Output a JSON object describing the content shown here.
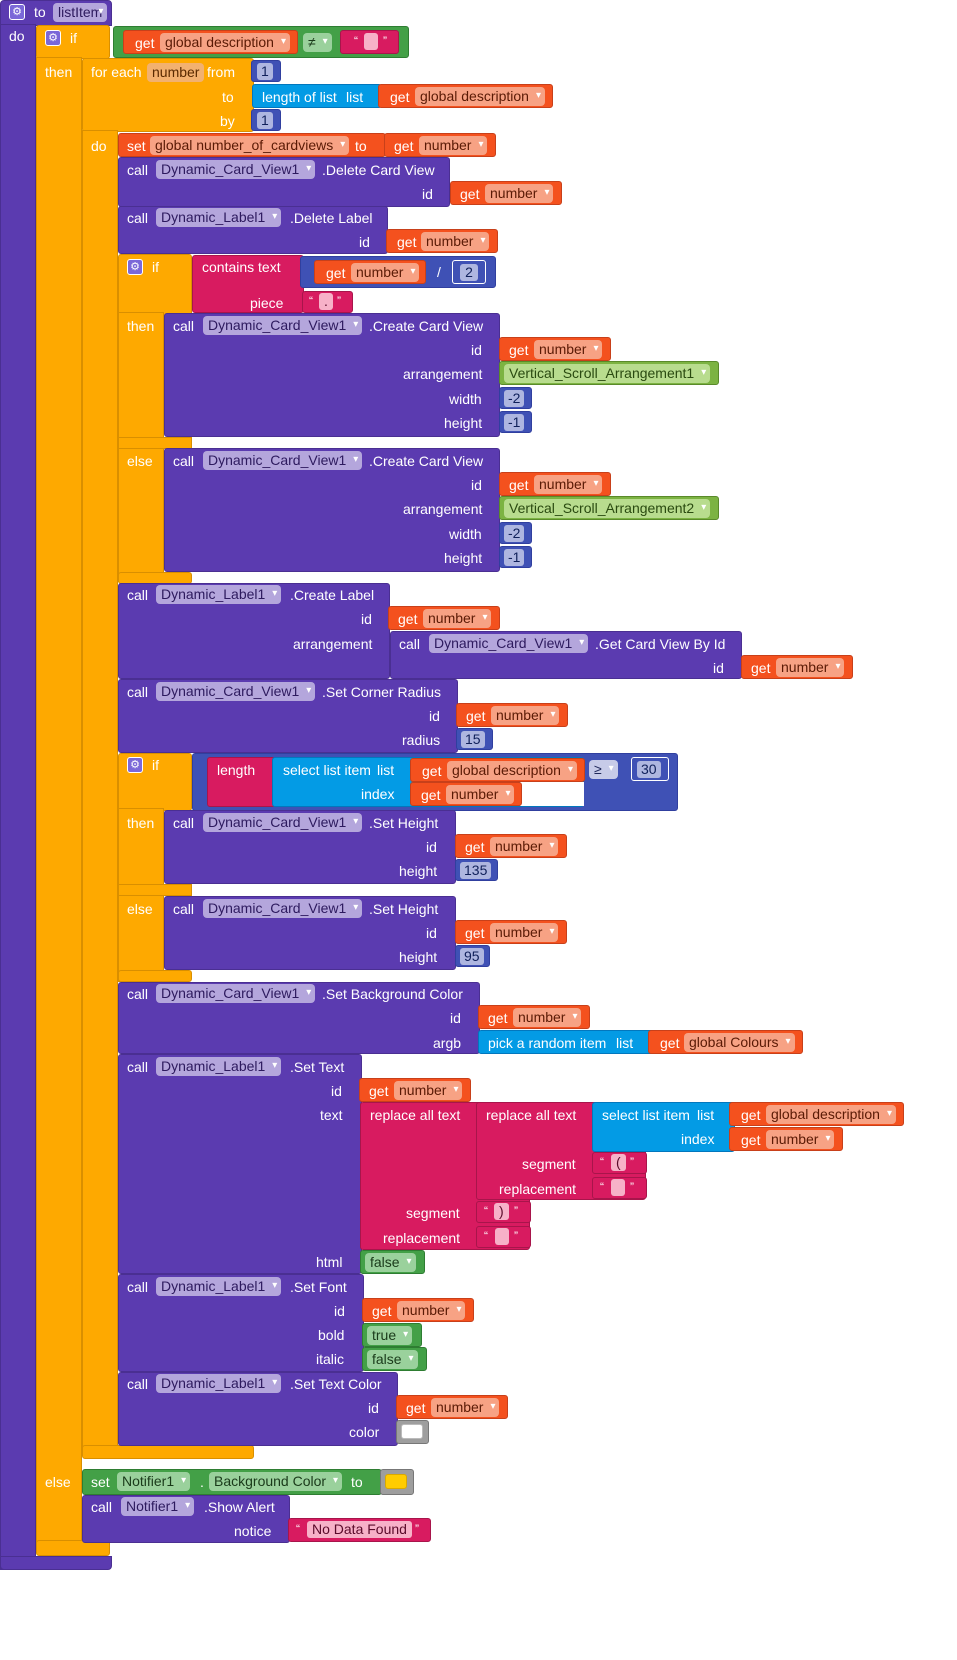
{
  "procedure": {
    "to": "to",
    "name": "listItem",
    "do": "do"
  },
  "kw": {
    "if": "if",
    "then": "then",
    "else": "else",
    "do": "do",
    "call": "call",
    "get": "get",
    "set": "set",
    "to": "to",
    "for_each": "for each",
    "from": "from",
    "by": "by",
    "id": "id",
    "arrangement": "arrangement",
    "width": "width",
    "height": "height",
    "radius": "radius",
    "argb": "argb",
    "text": "text",
    "html": "html",
    "bold": "bold",
    "italic": "italic",
    "color": "color",
    "notice": "notice",
    "segment": "segment",
    "replacement": "replacement",
    "piece": "piece",
    "index": "index",
    "list": "list",
    "dot": "."
  },
  "vars": {
    "global_description": "global description",
    "number": "number",
    "global_number_of_cardviews": "global number_of_cardviews",
    "global_colours": "global Colours"
  },
  "components": {
    "card_view": "Dynamic_Card_View1",
    "label": "Dynamic_Label1",
    "vsa1": "Vertical_Scroll_Arrangement1",
    "vsa2": "Vertical_Scroll_Arrangement2",
    "notifier": "Notifier1"
  },
  "methods": {
    "delete_card_view": ".Delete Card View",
    "delete_label": ".Delete Label",
    "create_card_view": ".Create Card View",
    "create_label": ".Create Label",
    "get_card_view_by_id": ".Get Card View By Id",
    "set_corner_radius": ".Set Corner Radius",
    "set_height": ".Set Height",
    "set_background_color": ".Set Background Color",
    "set_text": ".Set Text",
    "set_font": ".Set Font",
    "set_text_color": ".Set Text Color",
    "show_alert": ".Show Alert"
  },
  "builtins": {
    "length_of_list": "length of list",
    "contains_text": "contains  text",
    "length": "length",
    "select_list_item": "select list item",
    "pick_random_item": "pick a random item",
    "replace_all_text": "replace all text",
    "background_color": "Background Color"
  },
  "ops": {
    "neq": "≠",
    "div": "/",
    "gte": "≥"
  },
  "nums": {
    "one": "1",
    "two": "2",
    "neg2": "-2",
    "neg1": "-1",
    "fifteen": "15",
    "thirty": "30",
    "h135": "135",
    "h95": "95"
  },
  "strings": {
    "dot": ".",
    "open_paren": "(",
    "close_paren": ")",
    "no_data": "No Data Found"
  },
  "bools": {
    "true": "true",
    "false": "false"
  },
  "colors": {
    "procedure": "#5b3bb0",
    "control": "#fea900",
    "get": "#f4511e",
    "text": "#d81b60",
    "list": "#039be5",
    "logic": "#43a047",
    "component": "#7cb342",
    "math": "#3f51b5",
    "white_swatch": "#ffffff",
    "yellow_swatch": "#ffcc00"
  }
}
